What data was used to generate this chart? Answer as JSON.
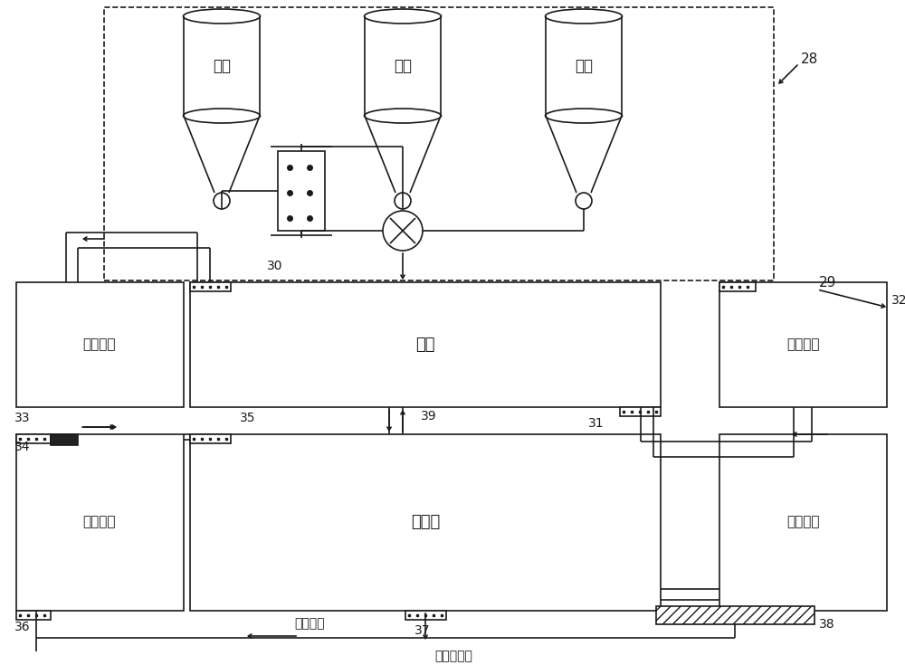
{
  "bg_color": "#ffffff",
  "lc": "#1a1a1a",
  "lw": 1.2,
  "label_28": "28",
  "label_29": "29",
  "label_30": "30",
  "label_31": "31",
  "label_32": "32",
  "label_33": "33",
  "label_34": "34",
  "label_35": "35",
  "label_36": "36",
  "label_37": "37",
  "label_38": "38",
  "label_39": "39",
  "text_wuji": "无机",
  "text_rujiao": "溶胶",
  "text_anshui": "氨水",
  "text_ningjiao": "凝胶",
  "text_qiyue": "气凝胶",
  "text_liquid_recov1": "液体回收",
  "text_liquid_recov2": "液体回收",
  "text_liquid_replace": "液体置换",
  "text_dry_gas": "干燥气体",
  "text_waste_gas": "废气回收",
  "text_crush": "破碎，筛分"
}
